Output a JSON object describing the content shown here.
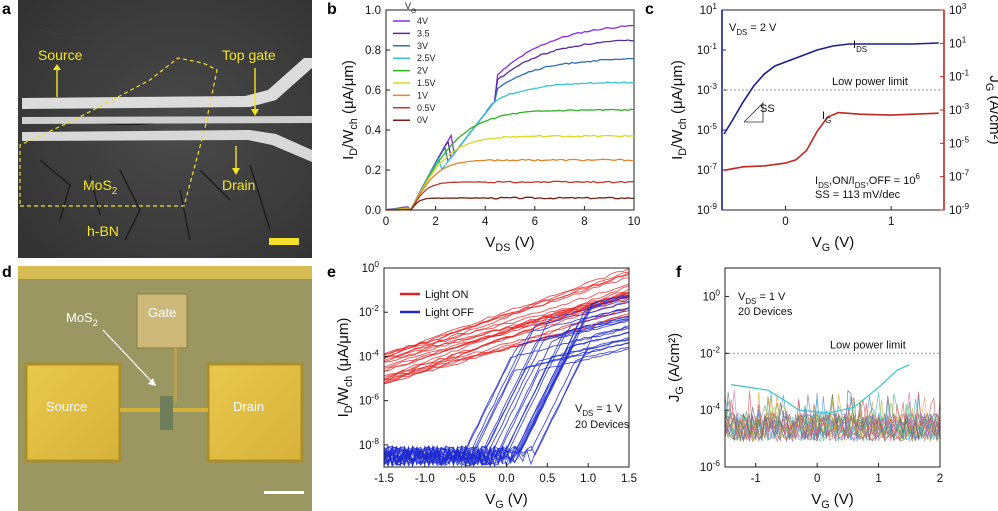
{
  "panel_labels": [
    "a",
    "b",
    "c",
    "d",
    "e",
    "f"
  ],
  "panel_a": {
    "labels": {
      "source": "Source",
      "top_gate": "Top gate",
      "mos2": "MoS",
      "mos2_sub": "2",
      "drain": "Drain",
      "hbn": "h-BN"
    }
  },
  "panel_d": {
    "labels": {
      "mos2": "MoS",
      "mos2_sub": "2",
      "gate": "Gate",
      "source": "Source",
      "drain": "Drain"
    }
  },
  "colors": {
    "blue_axis": "#1a1f8f",
    "red_axis": "#c0281e",
    "light_on": "#e52222",
    "light_off": "#1f2bd1",
    "limit_line": "#999999"
  },
  "chart_data": [
    {
      "panel": "b",
      "type": "line",
      "xlabel": "V_DS (V)",
      "ylabel": "I_D/W_ch (μA/μm)",
      "xlim": [
        0,
        10
      ],
      "ylim": [
        0,
        1.0
      ],
      "x_ticks": [
        "0",
        "2",
        "4",
        "6",
        "8",
        "10"
      ],
      "y_ticks": [
        "0.0",
        "0.2",
        "0.4",
        "0.6",
        "0.8",
        "1.0"
      ],
      "legend_title": "V_G",
      "legend_position": "top-left",
      "series": [
        {
          "name": "4V",
          "color": "#8a2be2",
          "sat": 0.94
        },
        {
          "name": "3.5",
          "color": "#5b2a9f",
          "sat": 0.86
        },
        {
          "name": "3V",
          "color": "#2a6fb5",
          "sat": 0.76
        },
        {
          "name": "2.5V",
          "color": "#33c6d8",
          "sat": 0.64
        },
        {
          "name": "2V",
          "color": "#2bb51f",
          "sat": 0.5
        },
        {
          "name": "1.5V",
          "color": "#e0d623",
          "sat": 0.37
        },
        {
          "name": "1V",
          "color": "#e1862a",
          "sat": 0.25
        },
        {
          "name": "0.5V",
          "color": "#c0392b",
          "sat": 0.14
        },
        {
          "name": "0V",
          "color": "#7b1e12",
          "sat": 0.06
        }
      ]
    },
    {
      "panel": "c",
      "type": "line",
      "xlabel": "V_G (V)",
      "ylabel": "I_D/W_ch (μA/μm)",
      "ylabel_right": "J_G (A/cm²)",
      "xlim": [
        -0.6,
        1.5
      ],
      "ylim_log": [
        -9,
        1
      ],
      "x_ticks": [
        "0",
        "1"
      ],
      "y_ticks_left": [
        "10^1",
        "10^-1",
        "10^-3",
        "10^-5",
        "10^-7",
        "10^-9"
      ],
      "y_ticks_right": [
        "10^3",
        "10^1",
        "10^-1",
        "10^-3",
        "10^-5",
        "10^-7",
        "10^-9"
      ],
      "vds_note": "V_DS = 2 V",
      "ids_label": "I_DS",
      "ig_label": "I_G",
      "limit_label": "Low power limit",
      "limit_value_log": -3.0,
      "ss_label": "SS",
      "onoff_note": "I_DS,ON/I_DS,OFF = 10^6",
      "ss_note": "SS = 113 mV/dec",
      "ids": {
        "x": [
          -0.58,
          -0.5,
          -0.4,
          -0.3,
          -0.2,
          -0.1,
          0,
          0.1,
          0.2,
          0.3,
          0.45,
          0.6,
          0.8,
          1.0,
          1.2,
          1.45
        ],
        "ylog": [
          -5.2,
          -4.5,
          -3.6,
          -2.8,
          -2.2,
          -1.8,
          -1.6,
          -1.4,
          -1.2,
          -1.0,
          -0.8,
          -0.7,
          -0.7,
          -0.7,
          -0.7,
          -0.65
        ]
      },
      "ig": {
        "x": [
          -0.58,
          -0.4,
          -0.2,
          0.0,
          0.1,
          0.2,
          0.3,
          0.4,
          0.5,
          0.7,
          1.0,
          1.45
        ],
        "ylog": [
          -7.0,
          -6.9,
          -6.8,
          -6.7,
          -6.5,
          -6.0,
          -5.0,
          -4.3,
          -4.2,
          -4.2,
          -4.2,
          -4.2
        ]
      }
    },
    {
      "panel": "e",
      "type": "line",
      "xlabel": "V_G (V)",
      "ylabel": "I_D/W_ch (μA/μm)",
      "xlim": [
        -1.5,
        1.5
      ],
      "ylim_log": [
        -9,
        0
      ],
      "x_ticks": [
        "-1.5",
        "-1.0",
        "-0.5",
        "0.0",
        "0.5",
        "1.0",
        "1.5"
      ],
      "y_ticks": [
        "10^0",
        "10^-2",
        "10^-4",
        "10^-6",
        "10^-8"
      ],
      "legend": [
        {
          "name": "Light ON",
          "color": "#e52222"
        },
        {
          "name": "Light OFF",
          "color": "#1f2bd1"
        }
      ],
      "legend_position": "top-left",
      "vds_note": "V_DS = 1 V",
      "devices_note": "20 Devices",
      "series": [
        {
          "name": "Light ON (typical)",
          "x": [
            -1.5,
            -1.0,
            -0.5,
            0.0,
            0.5,
            1.0,
            1.5
          ],
          "ylog": [
            -4.8,
            -4.3,
            -3.7,
            -3.0,
            -2.3,
            -1.6,
            -1.0
          ]
        },
        {
          "name": "Light OFF (typical)",
          "x": [
            -1.5,
            -1.0,
            -0.5,
            -0.25,
            0.0,
            0.5,
            1.0,
            1.5
          ],
          "ylog": [
            -8.8,
            -8.7,
            -8.4,
            -7.0,
            -5.0,
            -3.4,
            -2.4,
            -1.6
          ]
        }
      ]
    },
    {
      "panel": "f",
      "type": "line",
      "xlabel": "V_G (V)",
      "ylabel": "J_G (A/cm²)",
      "xlim": [
        -1.5,
        2
      ],
      "ylim_log": [
        -6,
        1
      ],
      "x_ticks": [
        "-1",
        "0",
        "1",
        "2"
      ],
      "y_ticks": [
        "10^0",
        "10^-2",
        "10^-4",
        "10^-6"
      ],
      "vds_note": "V_DS = 1 V",
      "devices_note": "20 Devices",
      "limit_label": "Low power limit",
      "limit_value_log": -2.0,
      "noise_floor_log": -4.6
    }
  ]
}
